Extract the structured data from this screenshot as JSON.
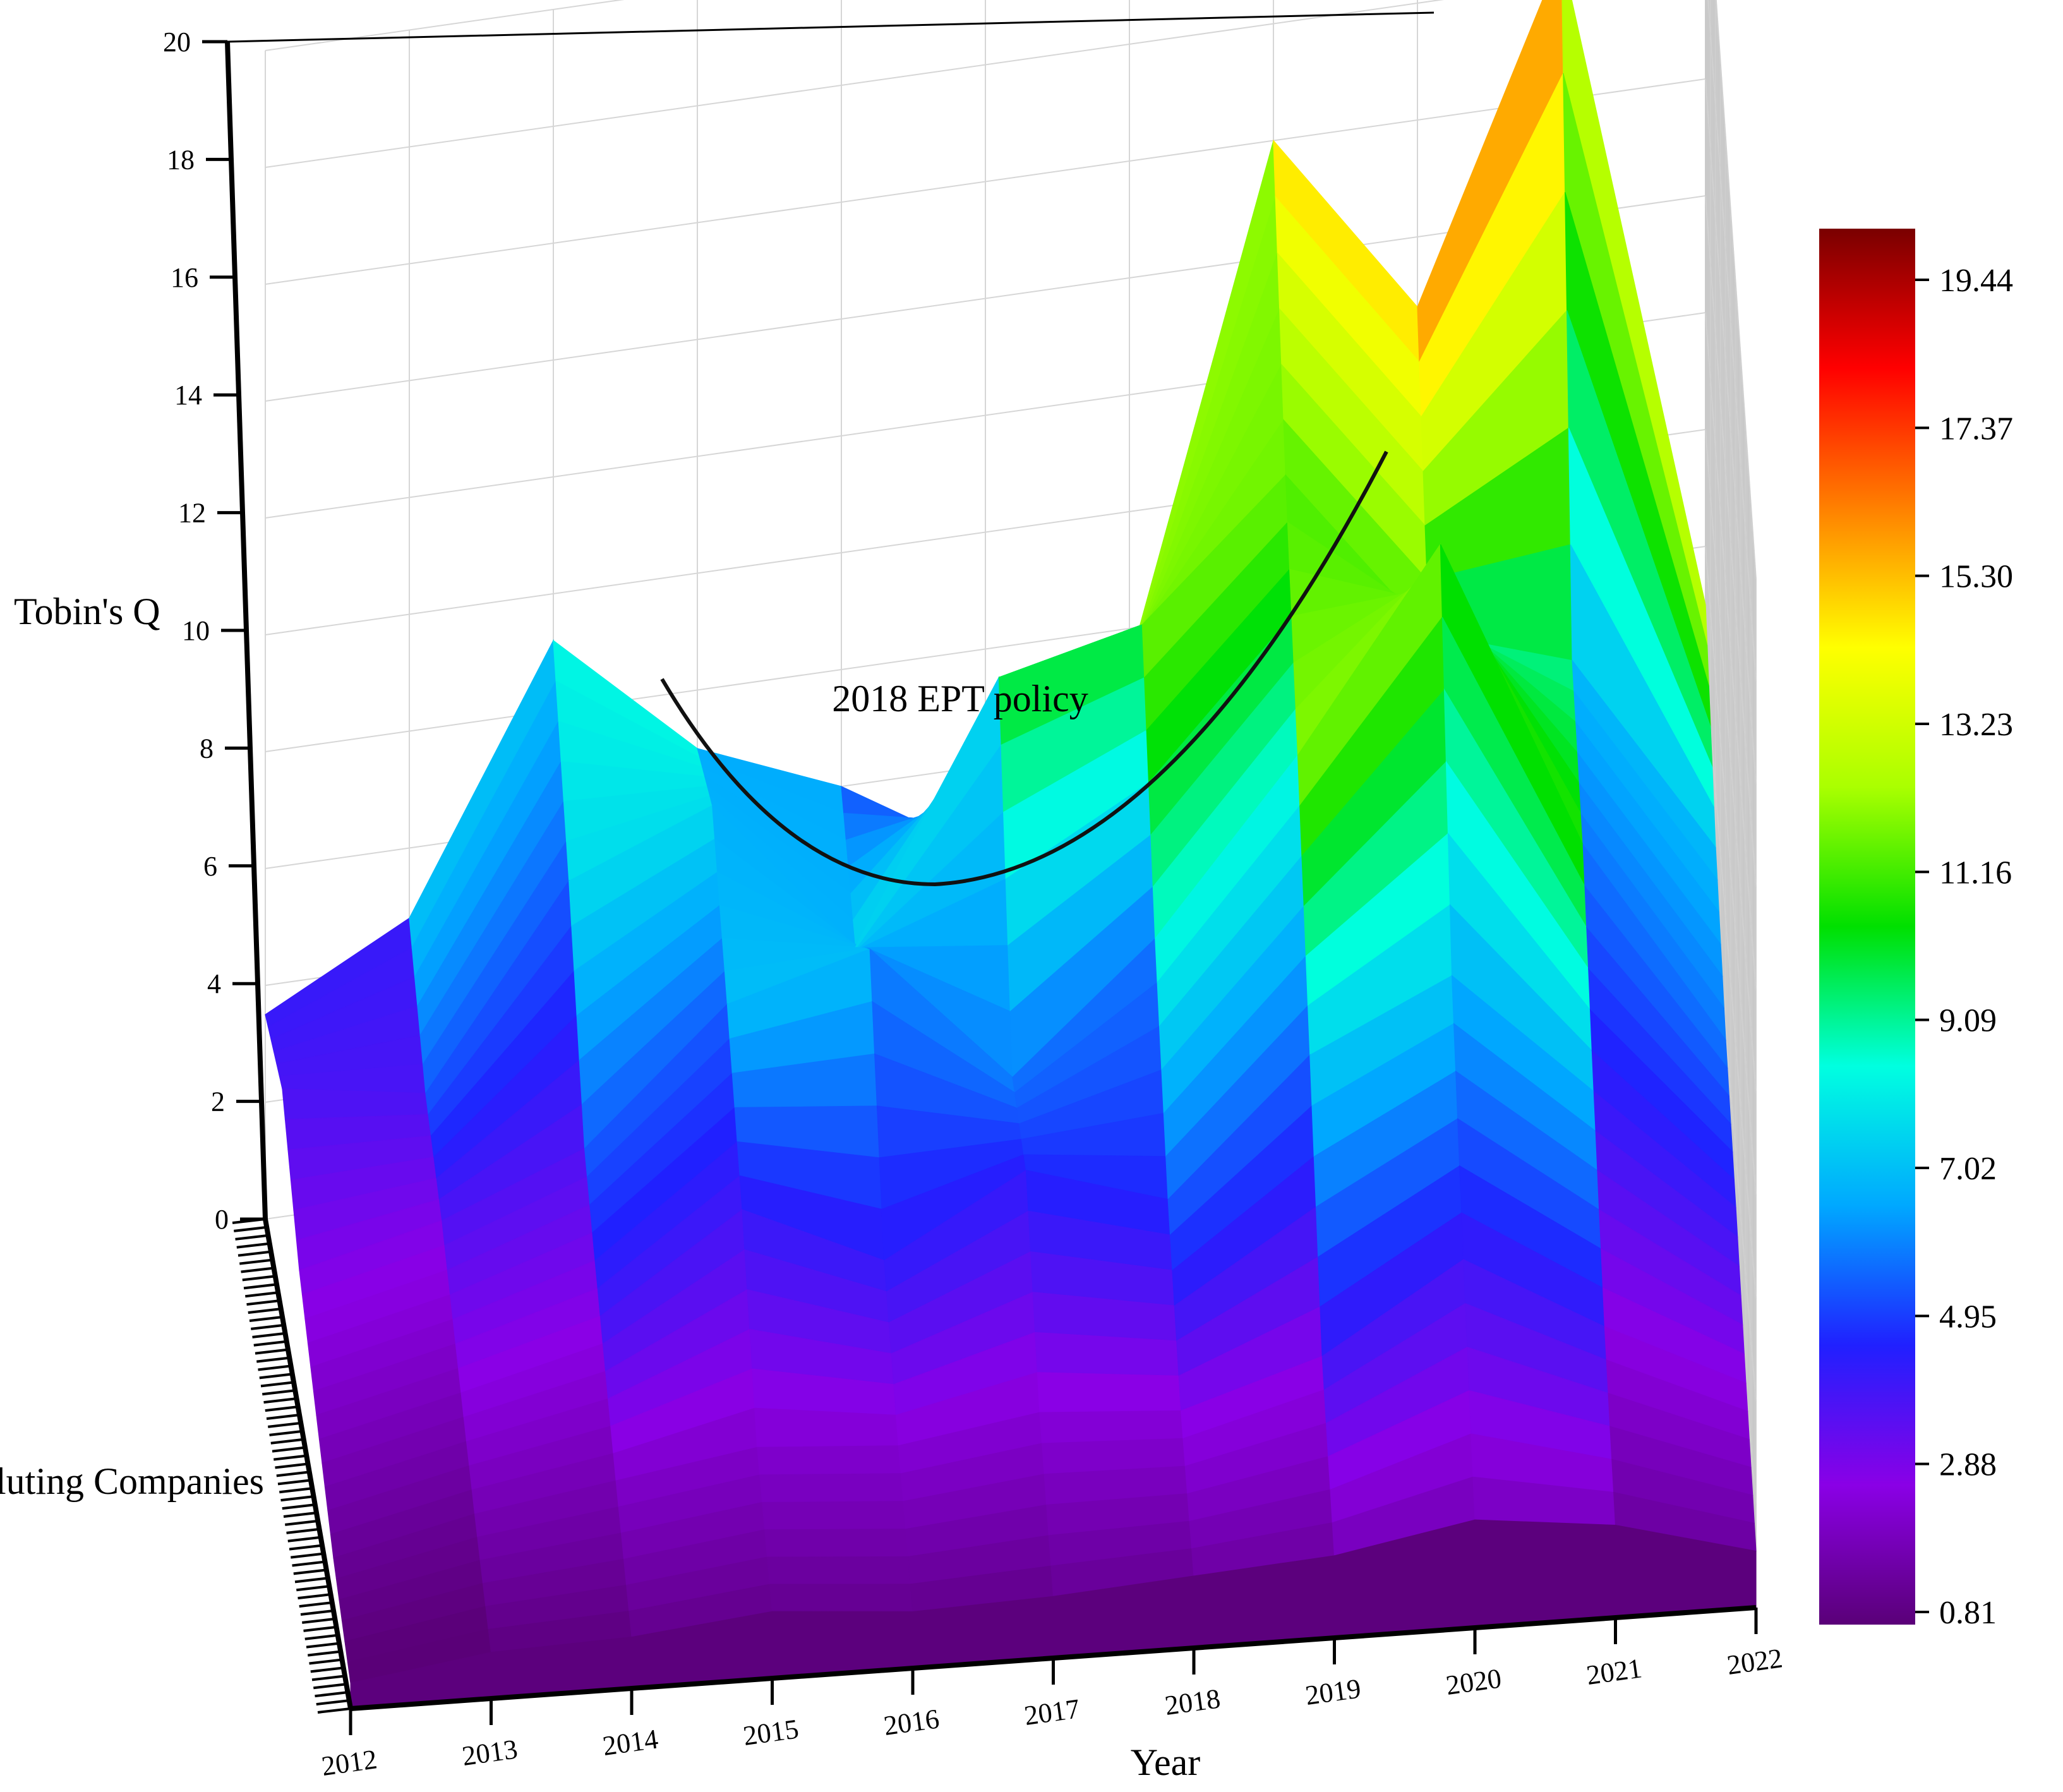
{
  "chart_data": {
    "type": "surface3d",
    "title": "",
    "annotation": "2018 EPT policy",
    "xlabel": "Year",
    "ylabel": "Polluting Companies",
    "zlabel": "Tobin's Q",
    "x_ticks": [
      "2012",
      "2013",
      "2014",
      "2015",
      "2016",
      "2017",
      "2018",
      "2019",
      "2020",
      "2021",
      "2022"
    ],
    "z_ticks": [
      "0",
      "2",
      "4",
      "6",
      "8",
      "10",
      "12",
      "14",
      "16",
      "18",
      "20"
    ],
    "zlim": [
      0,
      20
    ],
    "colorbar": {
      "ticks": [
        "0.81",
        "2.88",
        "4.95",
        "7.02",
        "9.09",
        "11.16",
        "13.23",
        "15.30",
        "17.37",
        "19.44"
      ],
      "range": [
        0.81,
        19.44
      ],
      "colors": [
        "#5a0078",
        "#8a00e6",
        "#2020ff",
        "#00a8ff",
        "#00ffe0",
        "#00e000",
        "#aaff00",
        "#ffff00",
        "#ff8000",
        "#ff0000",
        "#7a0000"
      ]
    },
    "series": [
      {
        "values": [
          3.5,
          4.8,
          9.2,
          7.0,
          6.0,
          4.5,
          7.4,
          16.0,
          12.8,
          18.5,
          7.0
        ]
      },
      {
        "values": [
          4.0,
          3.6,
          7.0,
          8.0,
          5.2,
          9.6,
          10.2,
          12.5,
          9.4,
          8.6,
          5.0
        ]
      },
      {
        "values": [
          2.6,
          3.2,
          4.2,
          6.5,
          7.2,
          4.6,
          6.8,
          9.8,
          13.3,
          7.6,
          3.8
        ]
      },
      {
        "values": [
          1.8,
          2.4,
          3.1,
          4.8,
          3.6,
          5.0,
          4.2,
          6.6,
          7.8,
          5.4,
          3.0
        ]
      },
      {
        "values": [
          1.0,
          1.6,
          2.0,
          2.4,
          2.2,
          2.6,
          2.4,
          3.2,
          4.8,
          3.3,
          2.0
        ]
      },
      {
        "values": [
          0.5,
          0.9,
          1.0,
          1.3,
          1.1,
          1.2,
          1.4,
          1.6,
          2.1,
          1.8,
          1.1
        ]
      }
    ]
  }
}
